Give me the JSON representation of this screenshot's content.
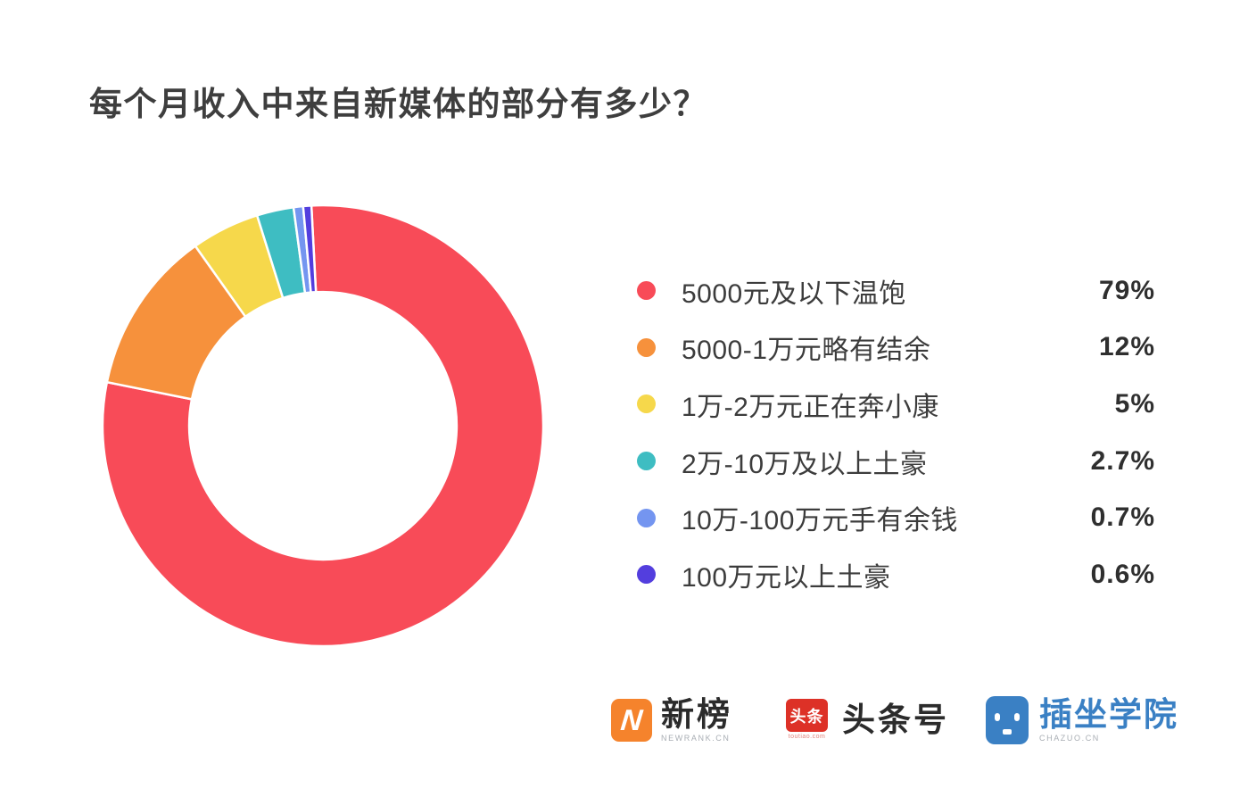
{
  "title": "每个月收入中来自新媒体的部分有多少？",
  "chart_data": {
    "type": "pie",
    "variant": "donut",
    "title": "每个月收入中来自新媒体的部分有多少？",
    "labels": [
      "5000元及以下温饱",
      "5000-1万元略有结余",
      "1万-2万元正在奔小康",
      "2万-10万及以上土豪",
      "10万-100万元手有余钱",
      "100万元以上土豪"
    ],
    "values": [
      79,
      12,
      5,
      2.7,
      0.7,
      0.6
    ],
    "value_labels": [
      "79%",
      "12%",
      "5%",
      "2.7%",
      "0.7%",
      "0.6%"
    ],
    "colors": [
      "#f84b58",
      "#f6913c",
      "#f6d84b",
      "#3ebdc2",
      "#7495f0",
      "#533ede"
    ],
    "start_angle_deg": -3,
    "direction": "clockwise",
    "inner_radius_ratio": 0.607,
    "slice_gap_color": "#ffffff",
    "legend_position": "right"
  },
  "footer": {
    "logos": [
      {
        "id": "newrank",
        "mark_letter": "N",
        "mark_bg": "#f5832c",
        "title": "新榜",
        "subtitle": "NEWRANK.CN"
      },
      {
        "id": "toutiao",
        "badge_text": "头条",
        "badge_bg": "#dd3127",
        "badge_sub": "toutiao.com",
        "title": "头条号"
      },
      {
        "id": "chazuo",
        "box_bg": "#3a80c4",
        "title": "插坐学院",
        "title_color": "#3a80c4",
        "subtitle": "CHAZUO.CN"
      }
    ]
  }
}
